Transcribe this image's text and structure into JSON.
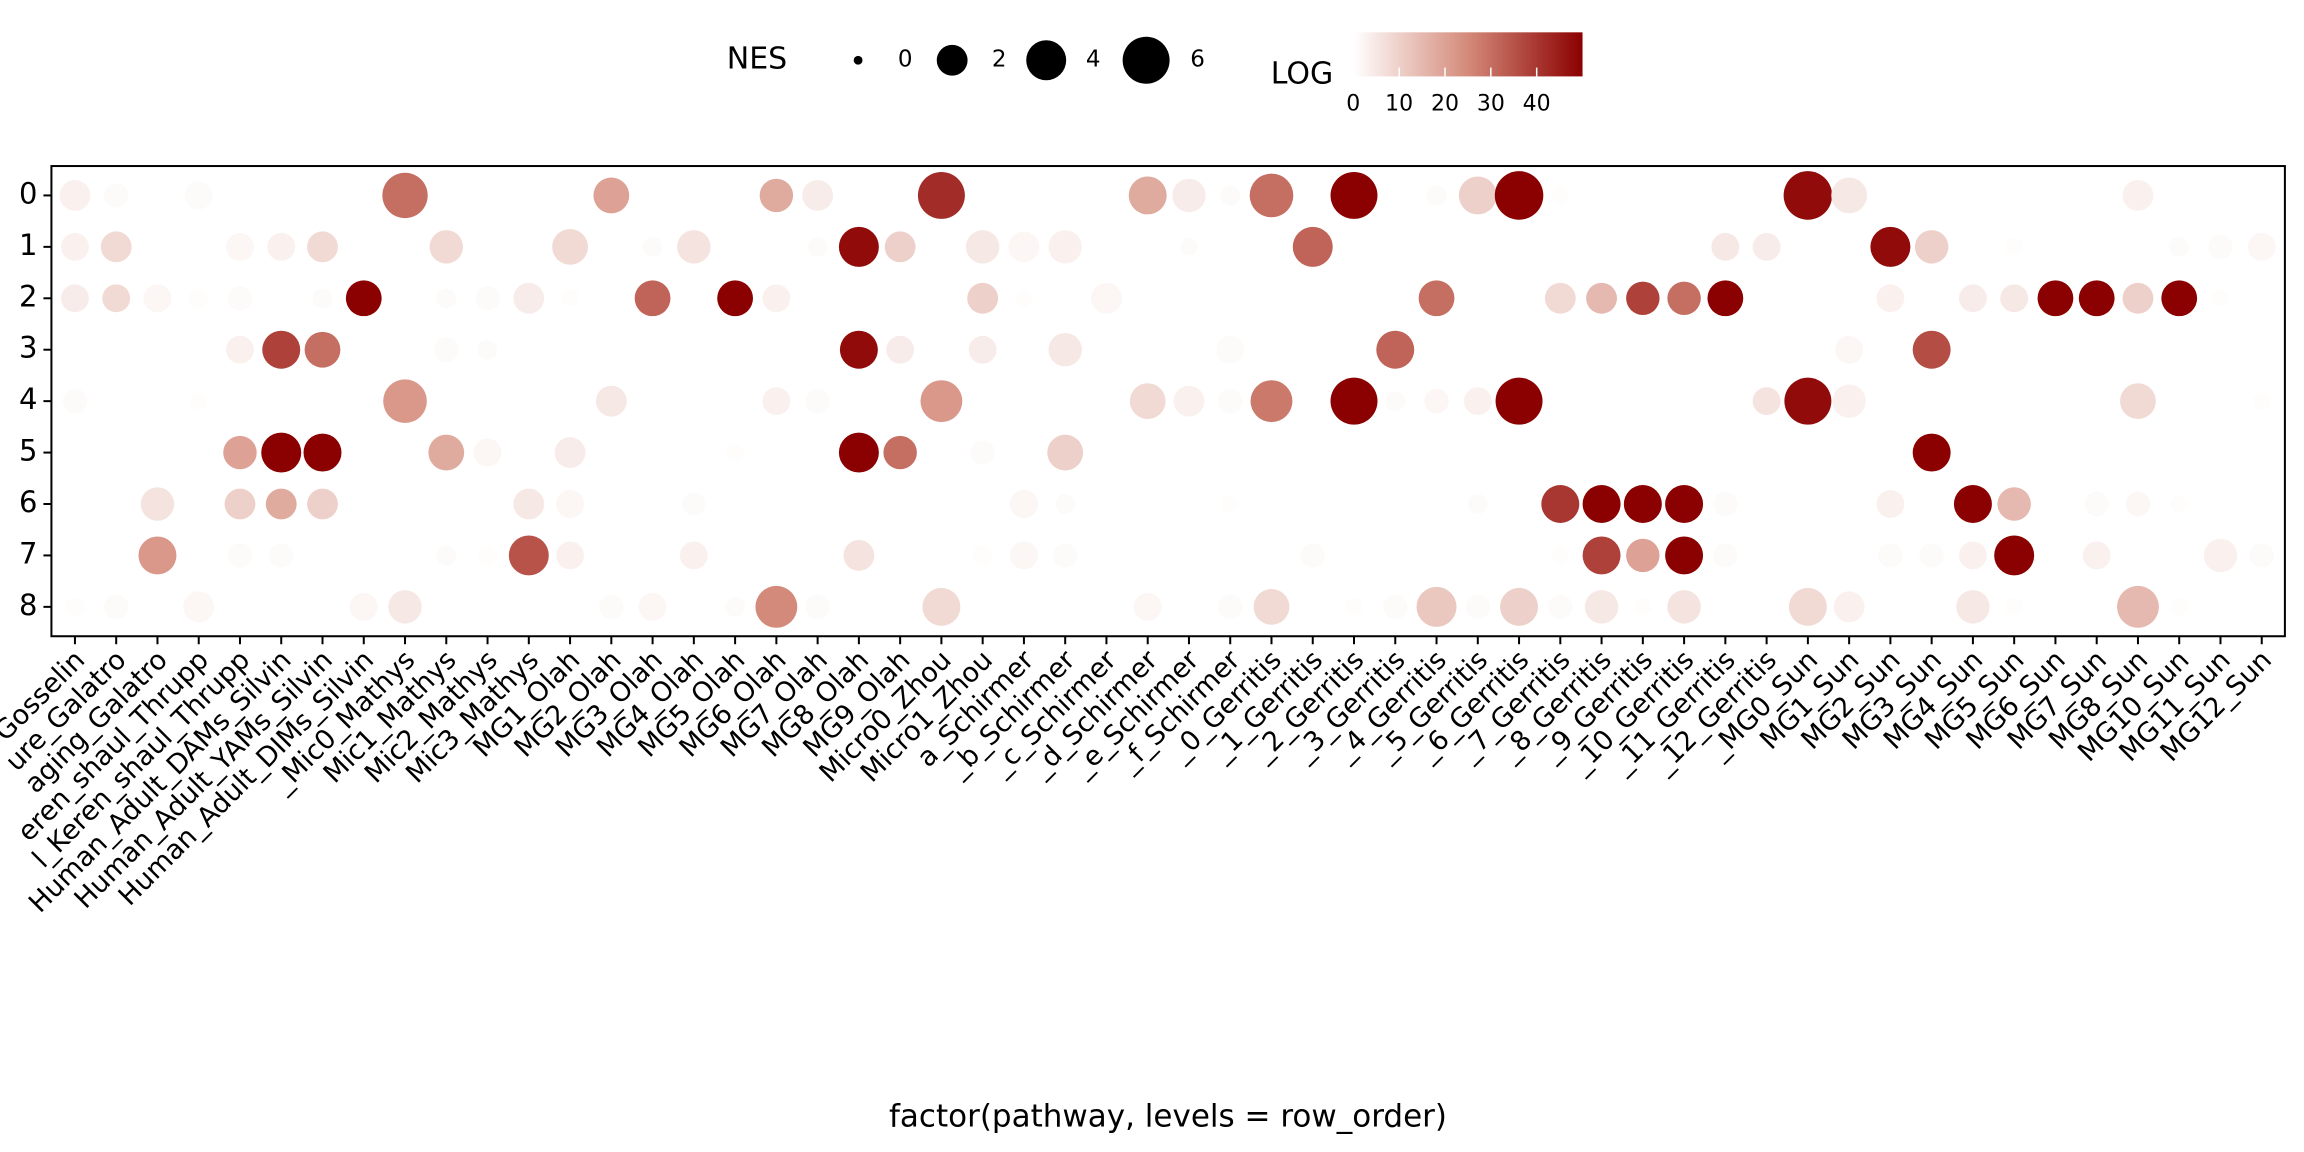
{
  "chart_data": {
    "type": "dotplot",
    "x_label": "factor(pathway, levels = row_order)",
    "categories": [
      "Gosselin",
      "ure_Galatro",
      "aging_Galatro",
      "eren_shaul_Thrupp",
      "l_Keren_shaul_Thrupp",
      "Human_Adult_DAMs_Silvin",
      "Human_Adult_YAMs_Silvin",
      "Human_Adult_DIMs_Silvin",
      "_Mic0_Mathys",
      "Mic1_Mathys",
      "Mic2_Mathys",
      "Mic3_Mathys",
      "MG1_Olah",
      "MG2_Olah",
      "MG3_Olah",
      "MG4_Olah",
      "MG5_Olah",
      "MG6_Olah",
      "MG7_Olah",
      "MG8_Olah",
      "MG9_Olah",
      "Micro0_Zhou",
      "Micro1_Zhou",
      "a_Schirmer",
      "_b_Schirmer",
      "_c_Schirmer",
      "_d_Schirmer",
      "_e_Schirmer",
      "_f_Schirmer",
      "_0_Gerritis",
      "_1_Gerritis",
      "_2_Gerritis",
      "_3_Gerritis",
      "_4_Gerritis",
      "_5_Gerritis",
      "_6_Gerritis",
      "_7_Gerritis",
      "_8_Gerritis",
      "_9_Gerritis",
      "_10_Gerritis",
      "_11_Gerritis",
      "_12_Gerritis",
      "_MG0_Sun",
      "MG1_Sun",
      "MG2_Sun",
      "MG3_Sun",
      "MG4_Sun",
      "MG5_Sun",
      "MG6_Sun",
      "MG7_Sun",
      "MG8_Sun",
      "MG10_Sun",
      "MG11_Sun",
      "MG12_Sun"
    ],
    "rows": [
      "0",
      "1",
      "2",
      "3",
      "4",
      "5",
      "6",
      "7",
      "8"
    ],
    "size_title": "NES",
    "size_legend": [
      0,
      2,
      4,
      6
    ],
    "color_title": "LOG",
    "colorlim": [
      0,
      50
    ],
    "color_ticks": [
      0,
      10,
      20,
      30,
      40
    ],
    "colors": [
      "#ffffff",
      "#d48a7a",
      "#8b0000"
    ],
    "nes": [
      [
        2,
        1,
        null,
        1.5,
        null,
        null,
        null,
        null,
        5.5,
        null,
        null,
        null,
        null,
        3,
        null,
        null,
        null,
        2.5,
        2,
        null,
        null,
        6,
        null,
        null,
        null,
        null,
        3.5,
        2.5,
        0.5,
        5,
        null,
        6,
        null,
        0.5,
        3.5,
        6.5,
        0.3,
        null,
        null,
        null,
        null,
        null,
        6.5,
        3,
        null,
        null,
        null,
        null,
        null,
        null,
        2,
        null,
        null,
        null
      ],
      [
        1.5,
        2,
        null,
        null,
        1.5,
        1.5,
        2,
        null,
        null,
        2.5,
        null,
        null,
        3,
        null,
        0.5,
        2.5,
        null,
        null,
        0.5,
        4,
        2,
        null,
        2.5,
        2,
        2.5,
        null,
        null,
        0.3,
        null,
        null,
        4,
        null,
        null,
        null,
        null,
        null,
        null,
        null,
        null,
        null,
        1.5,
        1.5,
        null,
        null,
        4,
        2.5,
        null,
        0.3,
        null,
        null,
        null,
        0.5,
        1,
        1.5
      ],
      [
        1.5,
        1.5,
        1.5,
        0.5,
        1,
        null,
        0.5,
        3,
        null,
        0.5,
        1,
        2,
        0.3,
        null,
        3,
        null,
        3,
        1.5,
        null,
        null,
        null,
        null,
        2,
        0.3,
        null,
        2,
        null,
        null,
        null,
        null,
        null,
        null,
        null,
        3,
        null,
        null,
        2,
        2,
        2.5,
        2.5,
        3,
        null,
        null,
        null,
        1.5,
        null,
        1.5,
        1.5,
        3,
        3,
        2,
        3,
        0.3,
        null
      ],
      [
        null,
        null,
        null,
        null,
        1.5,
        3.5,
        3,
        null,
        null,
        1,
        0.5,
        null,
        null,
        null,
        null,
        null,
        null,
        null,
        null,
        3.5,
        1.5,
        null,
        1.5,
        null,
        2.5,
        null,
        null,
        null,
        1.5,
        null,
        null,
        null,
        3.5,
        null,
        null,
        null,
        null,
        null,
        null,
        null,
        null,
        null,
        null,
        1.5,
        null,
        3.5,
        null,
        null,
        null,
        null,
        null,
        null,
        null,
        null
      ],
      [
        1,
        null,
        null,
        0.3,
        null,
        null,
        null,
        null,
        5,
        null,
        null,
        null,
        null,
        2,
        null,
        null,
        null,
        1.5,
        1,
        null,
        null,
        4.5,
        null,
        null,
        null,
        null,
        3,
        2,
        1,
        4.5,
        null,
        6,
        0.5,
        1,
        1.5,
        6,
        null,
        null,
        null,
        null,
        null,
        1.5,
        6,
        2.5,
        null,
        null,
        null,
        null,
        null,
        null,
        3,
        null,
        null,
        0.3
      ],
      [
        null,
        null,
        null,
        null,
        2.5,
        4,
        3.5,
        null,
        null,
        3,
        1.5,
        null,
        2,
        null,
        null,
        null,
        0.3,
        null,
        null,
        4,
        2.5,
        null,
        1,
        null,
        3,
        null,
        null,
        null,
        null,
        null,
        null,
        null,
        null,
        null,
        null,
        null,
        null,
        null,
        null,
        null,
        null,
        null,
        null,
        null,
        null,
        3.5,
        null,
        null,
        null,
        null,
        null,
        null,
        null,
        null
      ],
      [
        null,
        null,
        2.5,
        null,
        2,
        2,
        2,
        null,
        null,
        null,
        null,
        2,
        1.5,
        null,
        null,
        0.8,
        null,
        null,
        null,
        null,
        null,
        null,
        null,
        1.5,
        0.5,
        null,
        null,
        null,
        0.3,
        null,
        null,
        null,
        null,
        null,
        0.5,
        null,
        3.5,
        3.5,
        3.5,
        3.5,
        1,
        null,
        null,
        null,
        1.5,
        null,
        3.5,
        2.5,
        null,
        1,
        1,
        0.3,
        null,
        null
      ],
      [
        null,
        null,
        3.5,
        null,
        1,
        1,
        null,
        null,
        null,
        0.5,
        0.5,
        4,
        1.5,
        null,
        null,
        1.5,
        null,
        null,
        null,
        2,
        null,
        null,
        0.5,
        1.5,
        1,
        null,
        null,
        null,
        null,
        null,
        1,
        null,
        null,
        null,
        null,
        null,
        0.3,
        3.5,
        2.5,
        3.5,
        1,
        null,
        null,
        null,
        1,
        1,
        1.5,
        4,
        null,
        1.5,
        null,
        null,
        2.5,
        1
      ],
      [
        0.5,
        1,
        null,
        2,
        null,
        null,
        null,
        1.5,
        2.5,
        null,
        null,
        null,
        null,
        1,
        1.5,
        null,
        0.5,
        4.5,
        1,
        null,
        null,
        3.5,
        null,
        null,
        null,
        null,
        1.5,
        null,
        1,
        3,
        null,
        0.3,
        1,
        4,
        1,
        3.5,
        1,
        2.5,
        0.3,
        2.5,
        null,
        null,
        3.5,
        2,
        null,
        null,
        2.5,
        0.3,
        null,
        null,
        4.5,
        0.3,
        null,
        null
      ]
    ],
    "log": [
      [
        3,
        1,
        null,
        1,
        null,
        null,
        null,
        null,
        30,
        null,
        null,
        null,
        null,
        20,
        null,
        null,
        null,
        18,
        4,
        null,
        null,
        42,
        null,
        null,
        null,
        null,
        18,
        4,
        1,
        30,
        null,
        50,
        null,
        1,
        10,
        50,
        0.5,
        null,
        null,
        null,
        null,
        null,
        48,
        5,
        null,
        null,
        null,
        null,
        null,
        null,
        3,
        null,
        null,
        null
      ],
      [
        3,
        8,
        null,
        null,
        2,
        3,
        8,
        null,
        null,
        8,
        null,
        null,
        8,
        null,
        1,
        6,
        null,
        null,
        1,
        48,
        10,
        null,
        5,
        2,
        3,
        null,
        null,
        1,
        null,
        null,
        32,
        null,
        null,
        null,
        null,
        null,
        null,
        null,
        null,
        null,
        5,
        4,
        null,
        null,
        48,
        10,
        null,
        0.5,
        null,
        null,
        null,
        1,
        1,
        2
      ],
      [
        4,
        8,
        2,
        0.5,
        1,
        null,
        1,
        50,
        null,
        1,
        1,
        4,
        0.5,
        null,
        32,
        null,
        50,
        3,
        null,
        null,
        null,
        null,
        10,
        0.5,
        null,
        2,
        null,
        null,
        null,
        null,
        null,
        null,
        null,
        30,
        null,
        null,
        8,
        15,
        38,
        30,
        50,
        null,
        null,
        null,
        3,
        null,
        4,
        5,
        50,
        50,
        10,
        50,
        0.5,
        null
      ],
      [
        null,
        null,
        null,
        null,
        3,
        38,
        30,
        null,
        null,
        1,
        1,
        null,
        null,
        null,
        null,
        null,
        null,
        null,
        null,
        48,
        4,
        null,
        4,
        null,
        5,
        null,
        null,
        null,
        1,
        null,
        null,
        null,
        32,
        null,
        null,
        null,
        null,
        null,
        null,
        null,
        null,
        null,
        null,
        2,
        null,
        36,
        null,
        null,
        null,
        null,
        null,
        null,
        null,
        null
      ],
      [
        1,
        null,
        null,
        0.5,
        null,
        null,
        null,
        null,
        22,
        null,
        null,
        null,
        null,
        5,
        null,
        null,
        null,
        3,
        1,
        null,
        null,
        22,
        null,
        null,
        null,
        null,
        8,
        3,
        1,
        28,
        null,
        50,
        1,
        2,
        3,
        50,
        null,
        null,
        null,
        null,
        null,
        6,
        48,
        3,
        null,
        null,
        null,
        null,
        null,
        null,
        8,
        null,
        null,
        0.5
      ],
      [
        null,
        null,
        null,
        null,
        20,
        50,
        50,
        null,
        null,
        18,
        2,
        null,
        4,
        null,
        null,
        null,
        0.5,
        null,
        null,
        50,
        30,
        null,
        1,
        null,
        10,
        null,
        null,
        null,
        null,
        null,
        null,
        null,
        null,
        null,
        null,
        null,
        null,
        null,
        null,
        null,
        null,
        null,
        null,
        null,
        null,
        50,
        null,
        null,
        null,
        null,
        null,
        null,
        null,
        null
      ],
      [
        null,
        null,
        6,
        null,
        10,
        18,
        10,
        null,
        null,
        null,
        null,
        5,
        2,
        null,
        null,
        1,
        null,
        null,
        null,
        null,
        null,
        null,
        null,
        2,
        1,
        null,
        null,
        null,
        0.5,
        null,
        null,
        null,
        null,
        null,
        1,
        null,
        40,
        50,
        50,
        50,
        1,
        null,
        null,
        null,
        3,
        null,
        50,
        15,
        null,
        1,
        2,
        0.5,
        null,
        null
      ],
      [
        null,
        null,
        22,
        null,
        1,
        1,
        null,
        null,
        null,
        1,
        0.5,
        35,
        3,
        null,
        null,
        3,
        null,
        null,
        null,
        6,
        null,
        null,
        0.5,
        2,
        1,
        null,
        null,
        null,
        null,
        null,
        1,
        null,
        null,
        null,
        null,
        null,
        0.5,
        38,
        20,
        50,
        1,
        null,
        null,
        null,
        1,
        1,
        3,
        50,
        null,
        3,
        null,
        null,
        3,
        1
      ],
      [
        0.5,
        1,
        null,
        2,
        null,
        null,
        null,
        2,
        5,
        null,
        null,
        null,
        null,
        1,
        2,
        null,
        1,
        25,
        1,
        null,
        null,
        8,
        null,
        null,
        null,
        null,
        2,
        null,
        1,
        8,
        null,
        0.5,
        1,
        12,
        1,
        10,
        1,
        5,
        0.5,
        6,
        null,
        null,
        8,
        3,
        null,
        null,
        5,
        0.5,
        null,
        null,
        15,
        0.5,
        null,
        null
      ]
    ]
  }
}
